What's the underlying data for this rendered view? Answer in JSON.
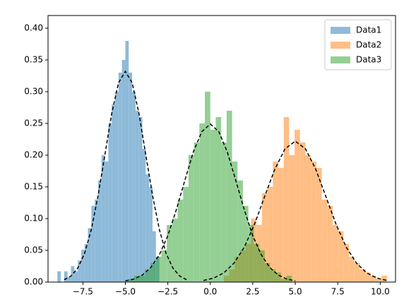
{
  "chart_data": {
    "type": "histogram",
    "xlim": [
      -9.55,
      10.9
    ],
    "ylim": [
      0,
      0.42
    ],
    "xticks": [
      {
        "value": -7.5,
        "label": "−7.5"
      },
      {
        "value": -5,
        "label": "−5.0"
      },
      {
        "value": -2.5,
        "label": "−2.5"
      },
      {
        "value": 0,
        "label": "0.0"
      },
      {
        "value": 2.5,
        "label": "2.5"
      },
      {
        "value": 5,
        "label": "5.0"
      },
      {
        "value": 7.5,
        "label": "7.5"
      },
      {
        "value": 10,
        "label": "10.0"
      }
    ],
    "yticks": [
      {
        "value": 0,
        "label": "0.00"
      },
      {
        "value": 0.05,
        "label": "0.05"
      },
      {
        "value": 0.1,
        "label": "0.10"
      },
      {
        "value": 0.15,
        "label": "0.15"
      },
      {
        "value": 0.2,
        "label": "0.20"
      },
      {
        "value": 0.25,
        "label": "0.25"
      },
      {
        "value": 0.3,
        "label": "0.30"
      },
      {
        "value": 0.35,
        "label": "0.35"
      },
      {
        "value": 0.4,
        "label": "0.40"
      }
    ],
    "legend": "upper right",
    "opacity": 0.5,
    "series": [
      {
        "name": "Data1",
        "color": "#1f77b4",
        "bins": [
          -9.0,
          -8.8,
          -8.6,
          -8.4,
          -8.2,
          -8.0,
          -7.8,
          -7.6,
          -7.4,
          -7.2,
          -7.0,
          -6.8,
          -6.6,
          -6.4,
          -6.2,
          -6.0,
          -5.8,
          -5.6,
          -5.4,
          -5.2,
          -5.0,
          -4.8,
          -4.6,
          -4.4,
          -4.2,
          -4.0,
          -3.8,
          -3.6,
          -3.4,
          -3.2,
          -3.0
        ],
        "values": [
          0.017,
          0,
          0.017,
          0.008,
          0.025,
          0.017,
          0.034,
          0.051,
          0.06,
          0.085,
          0.12,
          0.13,
          0.16,
          0.2,
          0.19,
          0.25,
          0.28,
          0.3,
          0.33,
          0.35,
          0.38,
          0.33,
          0.3,
          0.27,
          0.26,
          0.21,
          0.17,
          0.15,
          0.08,
          0.04
        ]
      },
      {
        "name": "Data2",
        "color": "#ff7f0e",
        "bins": [
          0.8,
          1.12,
          1.44,
          1.76,
          2.08,
          2.4,
          2.72,
          3.04,
          3.36,
          3.68,
          4.0,
          4.32,
          4.64,
          4.96,
          5.28,
          5.6,
          5.92,
          6.24,
          6.56,
          6.88,
          7.2,
          7.52,
          7.84,
          8.16,
          8.48,
          8.8,
          9.12,
          9.44,
          9.76,
          10.08,
          10.4
        ],
        "values": [
          0.01,
          0.02,
          0.04,
          0.05,
          0.06,
          0.1,
          0.09,
          0.14,
          0.15,
          0.19,
          0.18,
          0.26,
          0.2,
          0.24,
          0.22,
          0.2,
          0.19,
          0.18,
          0.13,
          0.12,
          0.09,
          0.08,
          0.06,
          0.04,
          0.03,
          0.02,
          0.015,
          0.01,
          0.005,
          0.01
        ]
      },
      {
        "name": "Data3",
        "color": "#2ca02c",
        "bins": [
          -4.8,
          -4.48,
          -4.16,
          -3.84,
          -3.52,
          -3.2,
          -2.88,
          -2.56,
          -2.24,
          -1.92,
          -1.6,
          -1.28,
          -0.96,
          -0.64,
          -0.32,
          0,
          0.32,
          0.64,
          0.96,
          1.28,
          1.6,
          1.92,
          2.24,
          2.56,
          2.88,
          3.2,
          3.52,
          3.84,
          4.16,
          4.48,
          4.8
        ],
        "values": [
          0.005,
          0.01,
          0.01,
          0.02,
          0.03,
          0.04,
          0.05,
          0.09,
          0.1,
          0.13,
          0.15,
          0.2,
          0.22,
          0.25,
          0.3,
          0.24,
          0.26,
          0.22,
          0.27,
          0.19,
          0.16,
          0.12,
          0.09,
          0.06,
          0.05,
          0.03,
          0.02,
          0.015,
          0.005,
          0.01
        ]
      }
    ],
    "curves": [
      {
        "color": "#000000",
        "x": [
          -8.6,
          -8.2,
          -7.8,
          -7.4,
          -7.0,
          -6.6,
          -6.2,
          -5.8,
          -5.4,
          -5.0,
          -4.6,
          -4.2,
          -3.8,
          -3.4,
          -3.0,
          -2.6,
          -2.2,
          -1.8,
          -1.4
        ],
        "values": [
          0.0037,
          0.0095,
          0.022,
          0.045,
          0.083,
          0.137,
          0.201,
          0.266,
          0.314,
          0.332,
          0.314,
          0.266,
          0.201,
          0.137,
          0.083,
          0.045,
          0.022,
          0.0095,
          0.0037
        ]
      },
      {
        "color": "#000000",
        "x": [
          -0.4,
          0.2,
          0.8,
          1.4,
          2.0,
          2.6,
          3.2,
          3.8,
          4.4,
          5.0,
          5.6,
          6.2,
          6.8,
          7.4,
          8.0,
          8.6,
          9.2,
          9.8,
          10.4
        ],
        "values": [
          0.0025,
          0.0063,
          0.0146,
          0.03,
          0.055,
          0.091,
          0.135,
          0.178,
          0.21,
          0.222,
          0.21,
          0.178,
          0.135,
          0.091,
          0.055,
          0.03,
          0.0146,
          0.0063,
          0.0025
        ]
      },
      {
        "color": "#000000",
        "x": [
          -5.0,
          -4.5,
          -4.0,
          -3.5,
          -3.0,
          -2.5,
          -2.0,
          -1.5,
          -1.0,
          -0.5,
          0,
          0.5,
          1.0,
          1.5,
          2.0,
          2.5,
          3.0,
          3.5,
          4.0,
          4.5,
          5.0
        ],
        "values": [
          0.0019,
          0.0048,
          0.011,
          0.023,
          0.043,
          0.073,
          0.114,
          0.16,
          0.205,
          0.237,
          0.249,
          0.237,
          0.205,
          0.16,
          0.114,
          0.073,
          0.043,
          0.023,
          0.011,
          0.0048,
          0.0019
        ]
      }
    ]
  }
}
